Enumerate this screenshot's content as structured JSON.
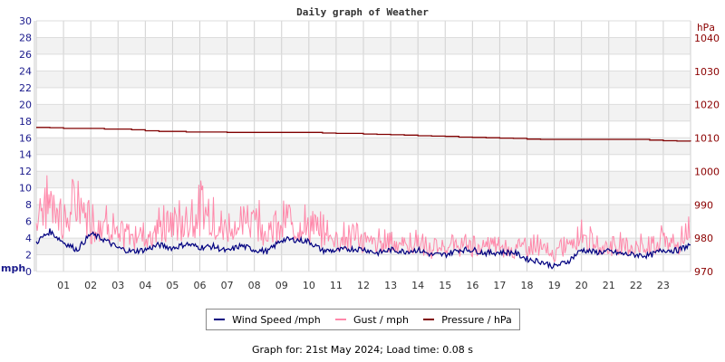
{
  "chart_data": {
    "type": "line",
    "title": "Daily graph of Weather",
    "xlabel": "",
    "ylabel_left": "mph",
    "ylabel_right": "hPa",
    "ylim_left": [
      0,
      30
    ],
    "ylim_right": [
      970,
      1040
    ],
    "yticks_left": [
      "0",
      "2",
      "4",
      "6",
      "8",
      "10",
      "12",
      "14",
      "16",
      "18",
      "20",
      "22",
      "24",
      "26",
      "28",
      "30"
    ],
    "yticks_right": [
      "970",
      "980",
      "990",
      "1000",
      "1010",
      "1020",
      "1030",
      "1040"
    ],
    "xticks": [
      "01",
      "02",
      "03",
      "04",
      "05",
      "06",
      "07",
      "08",
      "09",
      "10",
      "11",
      "12",
      "13",
      "14",
      "15",
      "16",
      "17",
      "18",
      "19",
      "20",
      "21",
      "22",
      "23"
    ],
    "grid": true,
    "legend_position": "bottom",
    "x_hours": [
      0,
      0.5,
      1,
      1.5,
      2,
      2.5,
      3,
      3.5,
      4,
      4.5,
      5,
      5.5,
      6,
      6.5,
      7,
      7.5,
      8,
      8.5,
      9,
      9.5,
      10,
      10.5,
      11,
      11.5,
      12,
      12.5,
      13,
      13.5,
      14,
      14.5,
      15,
      15.5,
      16,
      16.5,
      17,
      17.5,
      18,
      18.5,
      19,
      19.5,
      20,
      20.5,
      21,
      21.5,
      22,
      22.5,
      23,
      23.5,
      24
    ],
    "series": [
      {
        "name": "Wind Speed /mph",
        "color": "#000080",
        "axis": "left",
        "values": [
          3.5,
          4.8,
          3.5,
          2.6,
          4.5,
          3.8,
          2.8,
          2.4,
          2.6,
          3.2,
          2.8,
          3.3,
          2.9,
          3.0,
          2.4,
          3.1,
          2.6,
          2.4,
          3.8,
          3.8,
          3.6,
          2.5,
          2.5,
          2.7,
          2.7,
          2.2,
          2.6,
          2.4,
          2.6,
          2.0,
          2.0,
          2.6,
          2.6,
          2.2,
          2.3,
          2.3,
          1.5,
          1.2,
          0.6,
          1.2,
          2.6,
          2.3,
          2.4,
          2.1,
          2.0,
          1.9,
          2.6,
          2.5,
          3.2
        ]
      },
      {
        "name": "Gust / mph",
        "color": "#ff88aa",
        "axis": "left",
        "values": [
          8.0,
          10.5,
          7.0,
          9.5,
          6.5,
          7.5,
          4.5,
          5.0,
          5.5,
          6.0,
          6.5,
          7.0,
          8.5,
          7.0,
          6.0,
          6.5,
          8.0,
          5.0,
          6.5,
          7.0,
          6.0,
          5.5,
          4.5,
          5.0,
          4.0,
          4.0,
          4.5,
          3.5,
          4.0,
          3.0,
          3.5,
          3.5,
          3.5,
          3.5,
          3.5,
          3.0,
          3.5,
          3.5,
          2.0,
          4.0,
          5.5,
          3.5,
          3.5,
          4.0,
          3.5,
          3.5,
          4.5,
          3.5,
          5.5
        ]
      },
      {
        "name": "Pressure / hPa",
        "color": "#800000",
        "axis": "right",
        "values": [
          1013.2,
          1013.1,
          1012.9,
          1012.9,
          1012.9,
          1012.7,
          1012.7,
          1012.5,
          1012.2,
          1012.0,
          1012.0,
          1011.8,
          1011.8,
          1011.8,
          1011.7,
          1011.7,
          1011.7,
          1011.7,
          1011.7,
          1011.7,
          1011.7,
          1011.5,
          1011.4,
          1011.4,
          1011.2,
          1011.1,
          1011.0,
          1010.9,
          1010.7,
          1010.6,
          1010.5,
          1010.3,
          1010.2,
          1010.1,
          1010.0,
          1009.9,
          1009.7,
          1009.6,
          1009.6,
          1009.6,
          1009.6,
          1009.6,
          1009.6,
          1009.6,
          1009.6,
          1009.4,
          1009.2,
          1009.1,
          1009.0
        ]
      }
    ]
  },
  "legend": {
    "wind_label": "Wind Speed /mph",
    "gust_label": "Gust / mph",
    "pressure_label": "Pressure / hPa",
    "wind_color": "#000080",
    "gust_color": "#ff88aa",
    "pressure_color": "#800000"
  },
  "footer": {
    "text": "Graph for: 21st May 2024; Load time: 0.08 s"
  }
}
